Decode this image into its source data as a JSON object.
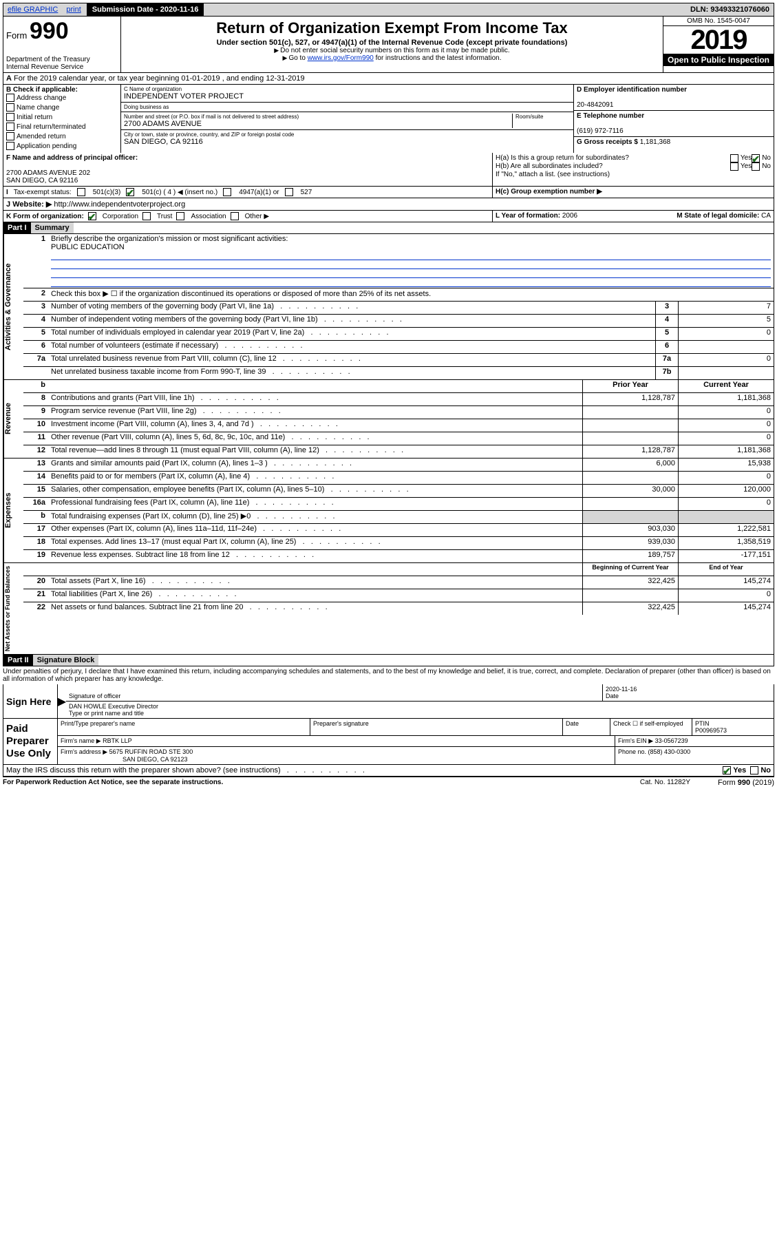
{
  "topbar": {
    "efile": "efile GRAPHIC",
    "print": "print",
    "subdate_label": "Submission Date - 2020-11-16",
    "dln": "DLN: 93493321076060"
  },
  "header": {
    "form_label": "Form",
    "form_no": "990",
    "title": "Return of Organization Exempt From Income Tax",
    "subtitle": "Under section 501(c), 527, or 4947(a)(1) of the Internal Revenue Code (except private foundations)",
    "sub2": "Do not enter social security numbers on this form as it may be made public.",
    "sub3_a": "Go to ",
    "sub3_link": "www.irs.gov/Form990",
    "sub3_b": " for instructions and the latest information.",
    "dept": "Department of the Treasury\nInternal Revenue Service",
    "omb": "OMB No. 1545-0047",
    "year": "2019",
    "otp": "Open to Public Inspection"
  },
  "row_a": "For the 2019 calendar year, or tax year beginning 01-01-2019    , and ending 12-31-2019",
  "box_b": {
    "title": "B Check if applicable:",
    "items": [
      "Address change",
      "Name change",
      "Initial return",
      "Final return/terminated",
      "Amended return",
      "Application pending"
    ]
  },
  "box_c": {
    "name_lbl": "C Name of organization",
    "name": "INDEPENDENT VOTER PROJECT",
    "dba_lbl": "Doing business as",
    "dba": "",
    "addr_lbl": "Number and street (or P.O. box if mail is not delivered to street address)",
    "room_lbl": "Room/suite",
    "addr": "2700 ADAMS AVENUE",
    "city_lbl": "City or town, state or province, country, and ZIP or foreign postal code",
    "city": "SAN DIEGO, CA  92116"
  },
  "box_d": {
    "lbl": "D Employer identification number",
    "val": "20-4842091"
  },
  "box_e": {
    "lbl": "E Telephone number",
    "val": "(619) 972-7116"
  },
  "box_g": {
    "lbl": "G Gross receipts $ ",
    "val": "1,181,368"
  },
  "box_f": {
    "lbl": "F Name and address of principal officer:",
    "addr": "2700 ADAMS AVENUE 202\nSAN DIEGO, CA  92116"
  },
  "box_h": {
    "ha": "H(a)  Is this a group return for subordinates?",
    "hb": "H(b)  Are all subordinates included?",
    "hb2": "If \"No,\" attach a list. (see instructions)",
    "hc": "H(c)  Group exemption number ▶"
  },
  "tax_exempt": "Tax-exempt status:",
  "tax_opts": {
    "a": "501(c)(3)",
    "b": "501(c) ( 4 ) ◀ (insert no.)",
    "c": "4947(a)(1) or",
    "d": "527"
  },
  "row_j": {
    "lbl": "Website: ▶",
    "val": "http://www.independentvoterproject.org"
  },
  "row_k": {
    "lbl": "K Form of organization:",
    "opts": [
      "Corporation",
      "Trust",
      "Association",
      "Other ▶"
    ]
  },
  "row_l": {
    "lbl": "L Year of formation: ",
    "val": "2006"
  },
  "row_m": {
    "lbl": "M State of legal domicile: ",
    "val": "CA"
  },
  "part1": {
    "hdr": "Part I",
    "title": "Summary"
  },
  "summary": {
    "l1_lbl": "Briefly describe the organization's mission or most significant activities:",
    "l1_val": "PUBLIC EDUCATION",
    "l2": "Check this box ▶ ☐  if the organization discontinued its operations or disposed of more than 25% of its net assets.",
    "rows_gov": [
      {
        "n": "3",
        "d": "Number of voting members of the governing body (Part VI, line 1a)",
        "box": "3",
        "v": "7"
      },
      {
        "n": "4",
        "d": "Number of independent voting members of the governing body (Part VI, line 1b)",
        "box": "4",
        "v": "5"
      },
      {
        "n": "5",
        "d": "Total number of individuals employed in calendar year 2019 (Part V, line 2a)",
        "box": "5",
        "v": "0"
      },
      {
        "n": "6",
        "d": "Total number of volunteers (estimate if necessary)",
        "box": "6",
        "v": ""
      },
      {
        "n": "7a",
        "d": "Total unrelated business revenue from Part VIII, column (C), line 12",
        "box": "7a",
        "v": "0"
      },
      {
        "n": "",
        "d": "Net unrelated business taxable income from Form 990-T, line 39",
        "box": "7b",
        "v": ""
      }
    ],
    "col_hdr": {
      "prior": "Prior Year",
      "curr": "Current Year"
    },
    "rows_rev": [
      {
        "n": "8",
        "d": "Contributions and grants (Part VIII, line 1h)",
        "p": "1,128,787",
        "c": "1,181,368"
      },
      {
        "n": "9",
        "d": "Program service revenue (Part VIII, line 2g)",
        "p": "",
        "c": "0"
      },
      {
        "n": "10",
        "d": "Investment income (Part VIII, column (A), lines 3, 4, and 7d )",
        "p": "",
        "c": "0"
      },
      {
        "n": "11",
        "d": "Other revenue (Part VIII, column (A), lines 5, 6d, 8c, 9c, 10c, and 11e)",
        "p": "",
        "c": "0"
      },
      {
        "n": "12",
        "d": "Total revenue—add lines 8 through 11 (must equal Part VIII, column (A), line 12)",
        "p": "1,128,787",
        "c": "1,181,368"
      }
    ],
    "rows_exp": [
      {
        "n": "13",
        "d": "Grants and similar amounts paid (Part IX, column (A), lines 1–3 )",
        "p": "6,000",
        "c": "15,938"
      },
      {
        "n": "14",
        "d": "Benefits paid to or for members (Part IX, column (A), line 4)",
        "p": "",
        "c": "0"
      },
      {
        "n": "15",
        "d": "Salaries, other compensation, employee benefits (Part IX, column (A), lines 5–10)",
        "p": "30,000",
        "c": "120,000"
      },
      {
        "n": "16a",
        "d": "Professional fundraising fees (Part IX, column (A), line 11e)",
        "p": "",
        "c": "0"
      },
      {
        "n": "b",
        "d": "Total fundraising expenses (Part IX, column (D), line 25) ▶0",
        "p": "GRAY",
        "c": "GRAY"
      },
      {
        "n": "17",
        "d": "Other expenses (Part IX, column (A), lines 11a–11d, 11f–24e)",
        "p": "903,030",
        "c": "1,222,581"
      },
      {
        "n": "18",
        "d": "Total expenses. Add lines 13–17 (must equal Part IX, column (A), line 25)",
        "p": "939,030",
        "c": "1,358,519"
      },
      {
        "n": "19",
        "d": "Revenue less expenses. Subtract line 18 from line 12",
        "p": "189,757",
        "c": "-177,151"
      }
    ],
    "col_hdr2": {
      "prior": "Beginning of Current Year",
      "curr": "End of Year"
    },
    "rows_net": [
      {
        "n": "20",
        "d": "Total assets (Part X, line 16)",
        "p": "322,425",
        "c": "145,274"
      },
      {
        "n": "21",
        "d": "Total liabilities (Part X, line 26)",
        "p": "",
        "c": "0"
      },
      {
        "n": "22",
        "d": "Net assets or fund balances. Subtract line 21 from line 20",
        "p": "322,425",
        "c": "145,274"
      }
    ]
  },
  "side_labels": {
    "gov": "Activities & Governance",
    "rev": "Revenue",
    "exp": "Expenses",
    "net": "Net Assets or Fund Balances"
  },
  "part2": {
    "hdr": "Part II",
    "title": "Signature Block"
  },
  "perjury": "Under penalties of perjury, I declare that I have examined this return, including accompanying schedules and statements, and to the best of my knowledge and belief, it is true, correct, and complete. Declaration of preparer (other than officer) is based on all information of which preparer has any knowledge.",
  "sign": {
    "here": "Sign Here",
    "sig_lbl": "Signature of officer",
    "date": "2020-11-16",
    "date_lbl": "Date",
    "name": "DAN HOWLE  Executive Director",
    "name_lbl": "Type or print name and title"
  },
  "paid": {
    "title": "Paid Preparer Use Only",
    "h1": "Print/Type preparer's name",
    "h2": "Preparer's signature",
    "h3": "Date",
    "h4a": "Check ☐ if self-employed",
    "h5": "PTIN",
    "ptin": "P00969573",
    "firm_lbl": "Firm's name    ▶ ",
    "firm": "RBTK LLP",
    "ein_lbl": "Firm's EIN ▶ ",
    "ein": "33-0567239",
    "addr_lbl": "Firm's address ▶ ",
    "addr": "5675 RUFFIN ROAD STE 300",
    "addr2": "SAN DIEGO, CA  92123",
    "phone_lbl": "Phone no. ",
    "phone": "(858) 430-0300"
  },
  "discuss": "May the IRS discuss this return with the preparer shown above? (see instructions)",
  "footer": {
    "l": "For Paperwork Reduction Act Notice, see the separate instructions.",
    "m": "Cat. No. 11282Y",
    "r": "Form 990 (2019)"
  }
}
